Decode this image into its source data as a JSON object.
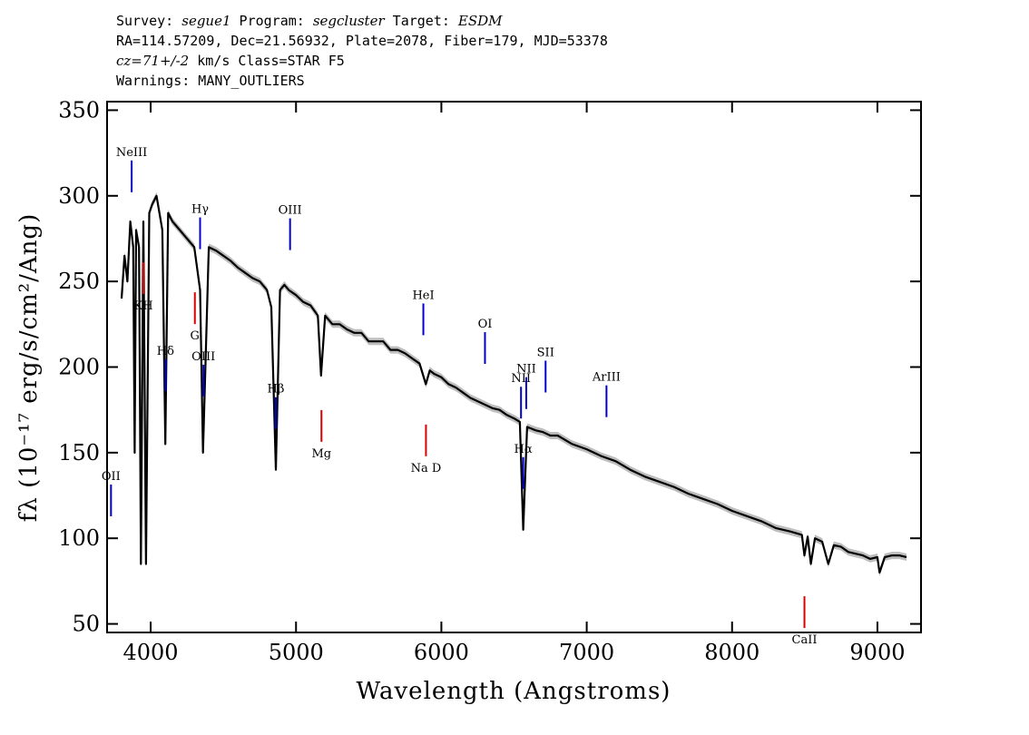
{
  "header": {
    "survey_label": "Survey: ",
    "survey": "segue1",
    "program_label": " Program: ",
    "program": "segcluster",
    "target_label": " Target: ",
    "target": "ESDM",
    "line2": "RA=114.57209, Dec=21.56932, Plate=2078, Fiber=179, MJD=53378",
    "cz": "cz=71+/-2",
    "line3_rest": " km/s Class=STAR F5",
    "line4": "Warnings: MANY_OUTLIERS"
  },
  "colors": {
    "spectrum": "#000000",
    "error_band": "#bdbdbd",
    "emission_marker": "#0000cc",
    "absorption_marker": "#dd0000",
    "frame": "#000000"
  },
  "chart_data": {
    "type": "line",
    "xlabel": "Wavelength (Angstroms)",
    "ylabel": "fλ (10⁻¹⁷ erg/s/cm²/Ang)",
    "xlim": [
      3700,
      9300
    ],
    "ylim": [
      45,
      355
    ],
    "xticks": [
      4000,
      5000,
      6000,
      7000,
      8000,
      9000
    ],
    "yticks": [
      50,
      100,
      150,
      200,
      250,
      300,
      350
    ],
    "series": [
      {
        "x": [
          3800,
          3820,
          3840,
          3860,
          3880,
          3890,
          3900,
          3920,
          3933,
          3950,
          3968,
          3990,
          4010,
          4040,
          4060,
          4080,
          4101,
          4120,
          4150,
          4200,
          4250,
          4300,
          4340,
          4360,
          4400,
          4450,
          4500,
          4550,
          4600,
          4650,
          4700,
          4750,
          4800,
          4830,
          4861,
          4890,
          4920,
          4950,
          5000,
          5050,
          5100,
          5150,
          5172,
          5200,
          5250,
          5300,
          5350,
          5400,
          5450,
          5500,
          5550,
          5600,
          5650,
          5700,
          5750,
          5800,
          5850,
          5893,
          5920,
          5950,
          6000,
          6050,
          6100,
          6150,
          6200,
          6250,
          6300,
          6350,
          6400,
          6450,
          6500,
          6540,
          6563,
          6590,
          6620,
          6650,
          6700,
          6750,
          6800,
          6900,
          7000,
          7100,
          7200,
          7300,
          7400,
          7500,
          7600,
          7700,
          7800,
          7900,
          8000,
          8100,
          8200,
          8300,
          8400,
          8480,
          8498,
          8520,
          8542,
          8570,
          8620,
          8662,
          8700,
          8750,
          8800,
          8850,
          8900,
          8950,
          9000,
          9015,
          9050,
          9100,
          9150,
          9200
        ],
        "y": [
          240,
          265,
          250,
          285,
          270,
          150,
          280,
          270,
          85,
          285,
          85,
          290,
          295,
          300,
          290,
          280,
          155,
          290,
          285,
          280,
          275,
          270,
          245,
          150,
          270,
          268,
          265,
          262,
          258,
          255,
          252,
          250,
          245,
          235,
          140,
          245,
          248,
          245,
          242,
          238,
          236,
          230,
          195,
          230,
          225,
          225,
          222,
          220,
          220,
          215,
          215,
          215,
          210,
          210,
          208,
          205,
          202,
          190,
          198,
          196,
          194,
          190,
          188,
          185,
          182,
          180,
          178,
          176,
          175,
          172,
          170,
          168,
          105,
          165,
          164,
          163,
          162,
          160,
          160,
          155,
          152,
          148,
          145,
          140,
          136,
          133,
          130,
          126,
          123,
          120,
          116,
          113,
          110,
          106,
          104,
          102,
          90,
          101,
          85,
          100,
          98,
          85,
          96,
          95,
          92,
          91,
          90,
          88,
          89,
          80,
          89,
          90,
          90,
          89
        ]
      }
    ],
    "annotations": {
      "top": [
        {
          "label": "OII",
          "x": 3727
        },
        {
          "label": "NeIII",
          "x": 3869
        },
        {
          "label": "Hδ",
          "x": 4102
        },
        {
          "label": "Hγ",
          "x": 4340
        },
        {
          "label": "OIII",
          "x": 4363
        },
        {
          "label": "Hβ",
          "x": 4861
        },
        {
          "label": "OIII",
          "x": 4959
        },
        {
          "label": "HeI",
          "x": 5876
        },
        {
          "label": "OI",
          "x": 6300
        },
        {
          "label": "NII",
          "x": 6548
        },
        {
          "label": "Hα",
          "x": 6563
        },
        {
          "label": "NII",
          "x": 6584
        },
        {
          "label": "SII",
          "x": 6717
        },
        {
          "label": "ArIII",
          "x": 7136
        }
      ],
      "bottom": [
        {
          "label": "KH",
          "x": 3950
        },
        {
          "label": "G",
          "x": 4304
        },
        {
          "label": "Mg",
          "x": 5175
        },
        {
          "label": "Na D",
          "x": 5894
        },
        {
          "label": "CaII",
          "x": 8498
        }
      ]
    }
  }
}
